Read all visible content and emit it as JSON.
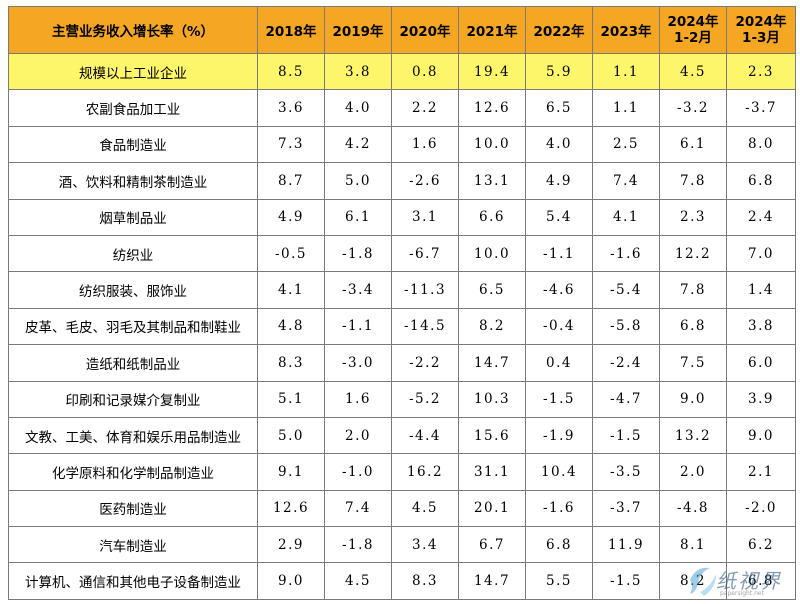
{
  "header": {
    "category": "主营业务收入增长率（%）",
    "years": [
      "2018年",
      "2019年",
      "2020年",
      "2021年",
      "2022年",
      "2023年"
    ],
    "period_a": [
      "2024年",
      "1-2月"
    ],
    "period_b": [
      "2024年",
      "1-3月"
    ]
  },
  "rows": [
    {
      "name": "规模以上工业企业",
      "values": [
        "8.5",
        "3.8",
        "0.8",
        "19.4",
        "5.9",
        "1.1",
        "4.5",
        "2.3"
      ]
    },
    {
      "name": "农副食品加工业",
      "values": [
        "3.6",
        "4.0",
        "2.2",
        "12.6",
        "6.5",
        "1.1",
        "-3.2",
        "-3.7"
      ]
    },
    {
      "name": "食品制造业",
      "values": [
        "7.3",
        "4.2",
        "1.6",
        "10.0",
        "4.0",
        "2.5",
        "6.1",
        "8.0"
      ]
    },
    {
      "name": "酒、饮料和精制茶制造业",
      "values": [
        "8.7",
        "5.0",
        "-2.6",
        "13.1",
        "4.9",
        "7.4",
        "7.8",
        "6.8"
      ]
    },
    {
      "name": "烟草制品业",
      "values": [
        "4.9",
        "6.1",
        "3.1",
        "6.6",
        "5.4",
        "4.1",
        "2.3",
        "2.4"
      ]
    },
    {
      "name": "纺织业",
      "values": [
        "-0.5",
        "-1.8",
        "-6.7",
        "10.0",
        "-1.1",
        "-1.6",
        "12.2",
        "7.0"
      ]
    },
    {
      "name": "纺织服装、服饰业",
      "values": [
        "4.1",
        "-3.4",
        "-11.3",
        "6.5",
        "-4.6",
        "-5.4",
        "7.8",
        "1.4"
      ]
    },
    {
      "name": "皮革、毛皮、羽毛及其制品和制鞋业",
      "values": [
        "4.8",
        "-1.1",
        "-14.5",
        "8.2",
        "-0.4",
        "-5.8",
        "6.8",
        "3.8"
      ]
    },
    {
      "name": "造纸和纸制品业",
      "values": [
        "8.3",
        "-3.0",
        "-2.2",
        "14.7",
        "0.4",
        "-2.4",
        "7.5",
        "6.0"
      ]
    },
    {
      "name": "印刷和记录媒介复制业",
      "values": [
        "5.1",
        "1.6",
        "-5.2",
        "10.3",
        "-1.5",
        "-4.7",
        "9.0",
        "3.9"
      ]
    },
    {
      "name": "文教、工美、体育和娱乐用品制造业",
      "values": [
        "5.0",
        "2.0",
        "-4.4",
        "15.6",
        "-1.9",
        "-1.5",
        "13.2",
        "9.0"
      ]
    },
    {
      "name": "化学原料和化学制品制造业",
      "values": [
        "9.1",
        "-1.0",
        "16.2",
        "31.1",
        "10.4",
        "-3.5",
        "2.0",
        "2.1"
      ]
    },
    {
      "name": "医药制造业",
      "values": [
        "12.6",
        "7.4",
        "4.5",
        "20.1",
        "-1.6",
        "-3.7",
        "-4.8",
        "-2.0"
      ]
    },
    {
      "name": "汽车制造业",
      "values": [
        "2.9",
        "-1.8",
        "3.4",
        "6.7",
        "6.8",
        "11.9",
        "8.1",
        "6.2"
      ]
    },
    {
      "name": "计算机、通信和其他电子设备制造业",
      "values": [
        "9.0",
        "4.5",
        "8.3",
        "14.7",
        "5.5",
        "-1.5",
        "8.2",
        "6.8"
      ]
    }
  ],
  "watermark": {
    "text": "纸视界",
    "sub": "papersight.net"
  }
}
